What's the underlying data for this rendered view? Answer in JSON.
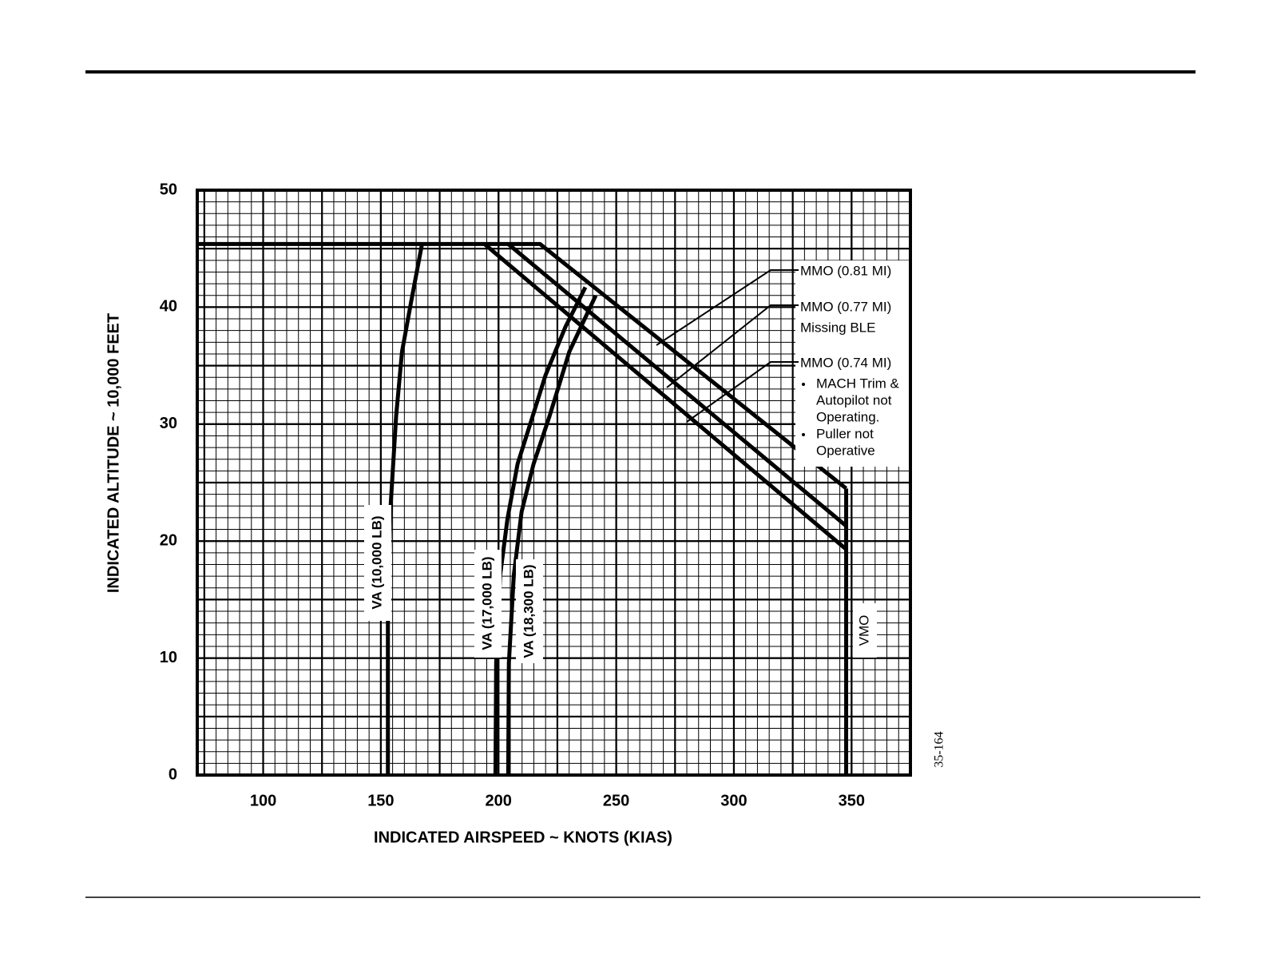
{
  "chart_data": {
    "type": "line",
    "x_label": "INDICATED AIRSPEED ~  KNOTS (KIAS)",
    "y_label": "INDICATED ALTITUDE ~ 10,000 FEET",
    "xlim": [
      72,
      375
    ],
    "xticks": [
      100,
      150,
      200,
      250,
      300,
      350
    ],
    "ylim": [
      0,
      50
    ],
    "yticks": [
      0,
      10,
      20,
      30,
      40,
      50
    ],
    "grid": true,
    "series": [
      {
        "name": "VA (10,000 LB)",
        "color": "#000000",
        "x": [
          153,
          153,
          154,
          156.5,
          159,
          163,
          167.5
        ],
        "values": [
          0,
          13,
          22.5,
          30.7,
          36.2,
          40.6,
          45.4
        ]
      },
      {
        "name": "VA (17,000 LB)",
        "color": "#000000",
        "x": [
          198.7,
          199,
          200.7,
          203.8,
          208.1,
          212.5,
          220,
          228.4,
          236.9
        ],
        "values": [
          0,
          9.6,
          17.1,
          21.9,
          26.6,
          29.4,
          34.2,
          38.3,
          41.7
        ]
      },
      {
        "name": "VA (18,300 LB)",
        "color": "#000000",
        "x": [
          204.1,
          204.4,
          206.5,
          209.8,
          214.9,
          221.7,
          230.1,
          241.3
        ],
        "values": [
          0,
          9.6,
          17.1,
          22.5,
          26.6,
          30.7,
          36.2,
          41
        ]
      },
      {
        "name": "MMO (0.81 MI)",
        "color": "#000000",
        "x": [
          72,
          217.6,
          347.7
        ],
        "values": [
          45.4,
          45.4,
          24.5
        ]
      },
      {
        "name": "MMO (0.77 MI)",
        "color": "#000000",
        "x": [
          204.1,
          347.7
        ],
        "values": [
          45.4,
          21.3
        ]
      },
      {
        "name": "MMO (0.74 MI)",
        "color": "#000000",
        "x": [
          194,
          347.7
        ],
        "values": [
          45.4,
          19.3
        ]
      },
      {
        "name": "VMO",
        "color": "#000000",
        "x": [
          347.7,
          347.7
        ],
        "values": [
          0,
          24.5
        ]
      }
    ],
    "annotations": [
      "Missing BLE",
      "MACH Trim &",
      "Autopilot not",
      "Operating.",
      "Puller not",
      "Operative",
      "35-164"
    ]
  }
}
